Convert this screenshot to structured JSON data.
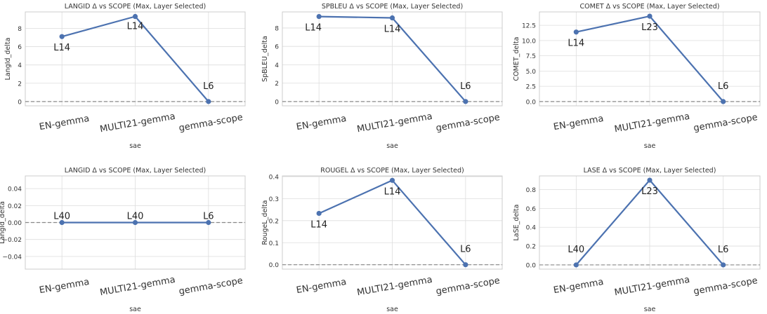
{
  "chart_data": [
    {
      "type": "line",
      "title": "LANGID Δ vs SCOPE (Max, Layer Selected)",
      "xlabel": "sae",
      "ylabel": "LangId_delta",
      "categories": [
        "EN-gemma",
        "MULTI21-gemma",
        "gemma-scope"
      ],
      "values": [
        7.1,
        9.3,
        0.0
      ],
      "point_labels": [
        "L14",
        "L14",
        "L6"
      ],
      "ylim": [
        -0.47,
        9.8
      ],
      "yticks": [
        0,
        2,
        4,
        6,
        8
      ],
      "ytick_labels": [
        "0",
        "2",
        "4",
        "6",
        "8"
      ],
      "reference_line": 0,
      "grid": "horizontal",
      "color": "#4c72b0"
    },
    {
      "type": "line",
      "title": "SPBLEU Δ vs SCOPE (Max, Layer Selected)",
      "xlabel": "sae",
      "ylabel": "SpBLEU_delta",
      "categories": [
        "EN-gemma",
        "MULTI21-gemma",
        "gemma-scope"
      ],
      "values": [
        9.25,
        9.1,
        0.0
      ],
      "point_labels": [
        "L14",
        "L14",
        "L6"
      ],
      "ylim": [
        -0.47,
        9.75
      ],
      "yticks": [
        0,
        2,
        4,
        6,
        8
      ],
      "ytick_labels": [
        "0",
        "2",
        "4",
        "6",
        "8"
      ],
      "reference_line": 0,
      "grid": "horizontal",
      "color": "#4c72b0"
    },
    {
      "type": "line",
      "title": "COMET Δ vs SCOPE (Max, Layer Selected)",
      "xlabel": "sae",
      "ylabel": "COMET_delta",
      "categories": [
        "EN-gemma",
        "MULTI21-gemma",
        "gemma-scope"
      ],
      "values": [
        11.4,
        14.0,
        0.0
      ],
      "point_labels": [
        "L14",
        "L23",
        "L6"
      ],
      "ylim": [
        -0.7,
        14.7
      ],
      "yticks": [
        0,
        2.5,
        5,
        7.5,
        10,
        12.5
      ],
      "ytick_labels": [
        "0.0",
        "2.5",
        "5.0",
        "7.5",
        "10.0",
        "12.5"
      ],
      "reference_line": 0,
      "grid": "horizontal",
      "color": "#4c72b0"
    },
    {
      "type": "line",
      "title": "LANGID Δ vs SCOPE (Max, Layer Selected)",
      "xlabel": "sae",
      "ylabel": "LangId_delta",
      "categories": [
        "EN-gemma",
        "MULTI21-gemma",
        "gemma-scope"
      ],
      "values": [
        0.0,
        0.0,
        0.0
      ],
      "point_labels": [
        "L40",
        "L40",
        "L6"
      ],
      "ylim": [
        -0.055,
        0.055
      ],
      "yticks": [
        -0.04,
        -0.02,
        0,
        0.02,
        0.04
      ],
      "ytick_labels": [
        "−0.04",
        "−0.02",
        "0.00",
        "0.02",
        "0.04"
      ],
      "reference_line": 0,
      "grid": "horizontal",
      "color": "#4c72b0"
    },
    {
      "type": "line",
      "title": "ROUGEL Δ vs SCOPE (Max, Layer Selected)",
      "xlabel": "sae",
      "ylabel": "RougeL_delta",
      "categories": [
        "EN-gemma",
        "MULTI21-gemma",
        "gemma-scope"
      ],
      "values": [
        0.233,
        0.383,
        0.0
      ],
      "point_labels": [
        "L14",
        "L14",
        "L6"
      ],
      "ylim": [
        -0.02,
        0.403
      ],
      "yticks": [
        0,
        0.1,
        0.2,
        0.3,
        0.4
      ],
      "ytick_labels": [
        "0.0",
        "0.1",
        "0.2",
        "0.3",
        "0.4"
      ],
      "reference_line": 0,
      "grid": "horizontal",
      "color": "#4c72b0"
    },
    {
      "type": "line",
      "title": "LASE Δ vs SCOPE (Max, Layer Selected)",
      "xlabel": "sae",
      "ylabel": "LaSE_delta",
      "categories": [
        "EN-gemma",
        "MULTI21-gemma",
        "gemma-scope"
      ],
      "values": [
        0.0,
        0.9,
        0.0
      ],
      "point_labels": [
        "L40",
        "L23",
        "L6"
      ],
      "ylim": [
        -0.045,
        0.945
      ],
      "yticks": [
        0,
        0.2,
        0.4,
        0.6,
        0.8
      ],
      "ytick_labels": [
        "0.0",
        "0.2",
        "0.4",
        "0.6",
        "0.8"
      ],
      "reference_line": 0,
      "grid": "horizontal",
      "color": "#4c72b0"
    }
  ]
}
